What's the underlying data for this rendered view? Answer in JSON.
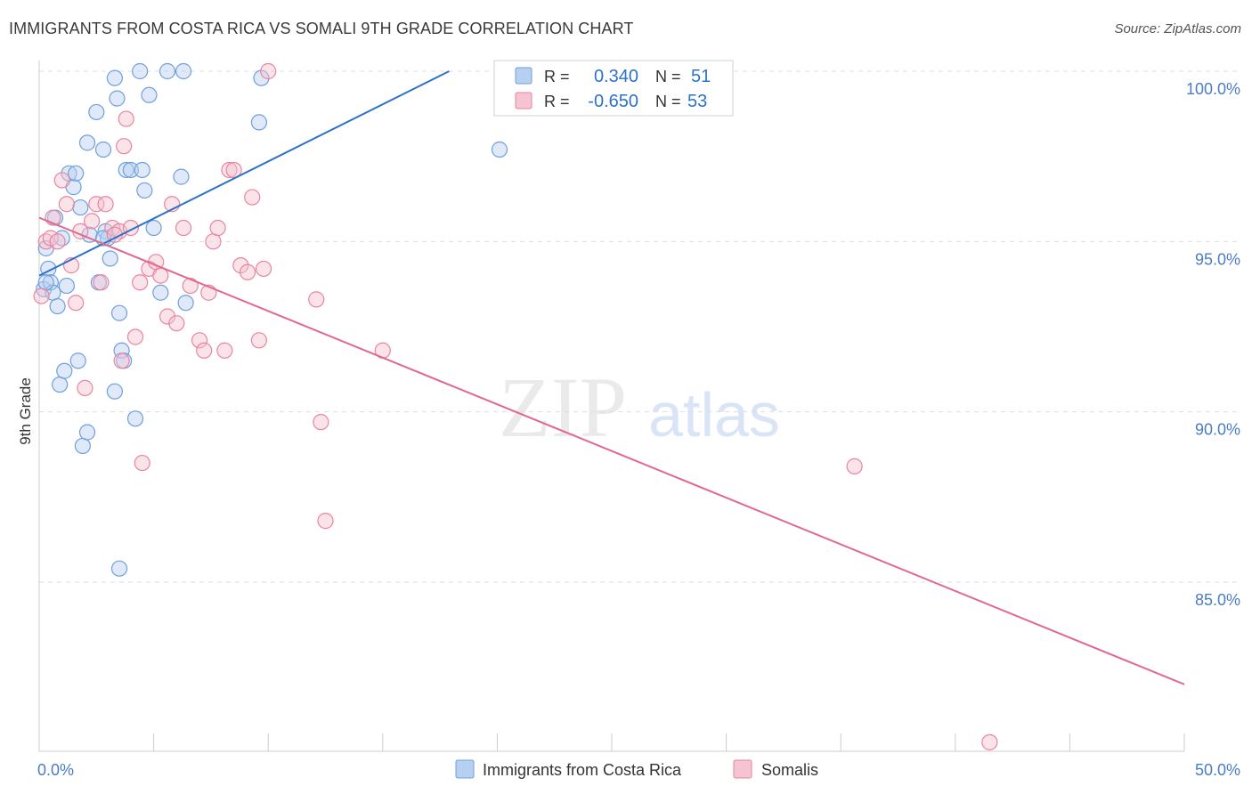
{
  "title": "IMMIGRANTS FROM COSTA RICA VS SOMALI 9TH GRADE CORRELATION CHART",
  "source": "Source: ZipAtlas.com",
  "watermark": {
    "zip": "ZIP",
    "atlas": "atlas"
  },
  "colors": {
    "blue": "#6fa0dc",
    "blue_fill": "#b7cff1",
    "blue_line": "#2d72c8",
    "pink": "#e8859f",
    "pink_fill": "#f5c3d1",
    "pink_line": "#e0698f",
    "tick_label": "#4a7cc7",
    "grid": "#dddddd"
  },
  "legend": {
    "rows": [
      {
        "r_label": "R =",
        "r_value": "0.340",
        "n_label": "N =",
        "n_value": "51"
      },
      {
        "r_label": "R =",
        "r_value": "-0.650",
        "n_label": "N =",
        "n_value": "53"
      }
    ]
  },
  "chart_data": {
    "type": "scatter",
    "xlabel": "",
    "ylabel": "9th Grade",
    "xlim": [
      0,
      50
    ],
    "ylim": [
      80.0,
      100.8
    ],
    "x_tick_labels": [
      {
        "value": 0,
        "label": "0.0%"
      },
      {
        "value": 50,
        "label": "50.0%"
      }
    ],
    "y_tick_labels": [
      {
        "value": 100,
        "label": "100.0%"
      },
      {
        "value": 95,
        "label": "95.0%"
      },
      {
        "value": 90,
        "label": "90.0%"
      },
      {
        "value": 85,
        "label": "85.0%"
      }
    ],
    "series": [
      {
        "name": "Immigrants from Costa Rica",
        "color": "blue",
        "trend": {
          "x0": 0,
          "y0": 94.0,
          "x1": 17.9,
          "y1": 100.0
        },
        "points": [
          [
            0.2,
            93.6
          ],
          [
            0.3,
            94.8
          ],
          [
            0.4,
            94.2
          ],
          [
            0.5,
            93.8
          ],
          [
            0.6,
            93.5
          ],
          [
            0.7,
            95.7
          ],
          [
            0.8,
            93.1
          ],
          [
            0.9,
            90.8
          ],
          [
            1.0,
            95.1
          ],
          [
            1.2,
            93.7
          ],
          [
            1.3,
            97.0
          ],
          [
            1.5,
            96.6
          ],
          [
            1.6,
            97.0
          ],
          [
            1.8,
            96.0
          ],
          [
            1.9,
            89.0
          ],
          [
            2.1,
            89.4
          ],
          [
            2.1,
            97.9
          ],
          [
            2.2,
            95.2
          ],
          [
            2.5,
            98.8
          ],
          [
            2.6,
            93.8
          ],
          [
            2.8,
            97.7
          ],
          [
            2.9,
            95.3
          ],
          [
            3.0,
            95.1
          ],
          [
            3.1,
            94.5
          ],
          [
            3.3,
            99.8
          ],
          [
            3.3,
            90.6
          ],
          [
            3.4,
            99.2
          ],
          [
            3.5,
            92.9
          ],
          [
            3.5,
            85.4
          ],
          [
            3.6,
            91.8
          ],
          [
            3.7,
            91.5
          ],
          [
            3.8,
            97.1
          ],
          [
            4.0,
            97.1
          ],
          [
            4.2,
            89.8
          ],
          [
            4.4,
            100.0
          ],
          [
            4.5,
            97.1
          ],
          [
            4.6,
            96.5
          ],
          [
            4.8,
            99.3
          ],
          [
            5.0,
            95.4
          ],
          [
            5.3,
            93.5
          ],
          [
            5.6,
            100.0
          ],
          [
            6.2,
            96.9
          ],
          [
            6.3,
            100.0
          ],
          [
            6.4,
            93.2
          ],
          [
            9.6,
            98.5
          ],
          [
            9.7,
            99.8
          ],
          [
            20.1,
            97.7
          ],
          [
            0.3,
            93.8
          ],
          [
            1.1,
            91.2
          ],
          [
            1.7,
            91.5
          ],
          [
            2.8,
            95.1
          ]
        ]
      },
      {
        "name": "Somalis",
        "color": "pink",
        "trend": {
          "x0": 0,
          "y0": 95.7,
          "x1": 50,
          "y1": 82.0
        },
        "points": [
          [
            0.1,
            93.4
          ],
          [
            0.3,
            95.0
          ],
          [
            0.5,
            95.1
          ],
          [
            0.6,
            95.7
          ],
          [
            0.8,
            95.0
          ],
          [
            1.0,
            96.8
          ],
          [
            1.2,
            96.1
          ],
          [
            1.4,
            94.3
          ],
          [
            1.6,
            93.2
          ],
          [
            1.8,
            95.3
          ],
          [
            2.0,
            90.7
          ],
          [
            2.3,
            95.6
          ],
          [
            2.5,
            96.1
          ],
          [
            2.7,
            93.8
          ],
          [
            2.9,
            96.1
          ],
          [
            3.2,
            95.4
          ],
          [
            3.5,
            95.3
          ],
          [
            3.6,
            91.5
          ],
          [
            3.7,
            97.8
          ],
          [
            3.8,
            98.6
          ],
          [
            4.0,
            95.4
          ],
          [
            4.2,
            92.2
          ],
          [
            4.4,
            93.8
          ],
          [
            4.5,
            88.5
          ],
          [
            4.8,
            94.2
          ],
          [
            5.1,
            94.4
          ],
          [
            5.3,
            94.0
          ],
          [
            5.6,
            92.8
          ],
          [
            5.8,
            96.1
          ],
          [
            6.0,
            92.6
          ],
          [
            6.3,
            95.4
          ],
          [
            6.6,
            93.7
          ],
          [
            7.0,
            92.1
          ],
          [
            7.2,
            91.8
          ],
          [
            7.4,
            93.5
          ],
          [
            7.6,
            95.0
          ],
          [
            7.8,
            95.4
          ],
          [
            8.1,
            91.8
          ],
          [
            8.3,
            97.1
          ],
          [
            8.5,
            97.1
          ],
          [
            8.8,
            94.3
          ],
          [
            9.1,
            94.1
          ],
          [
            9.3,
            96.3
          ],
          [
            9.6,
            92.1
          ],
          [
            9.8,
            94.2
          ],
          [
            10.0,
            100.0
          ],
          [
            12.1,
            93.3
          ],
          [
            12.3,
            89.7
          ],
          [
            12.5,
            86.8
          ],
          [
            15.0,
            91.8
          ],
          [
            35.6,
            88.4
          ],
          [
            41.5,
            80.3
          ],
          [
            3.3,
            95.2
          ]
        ]
      }
    ]
  }
}
